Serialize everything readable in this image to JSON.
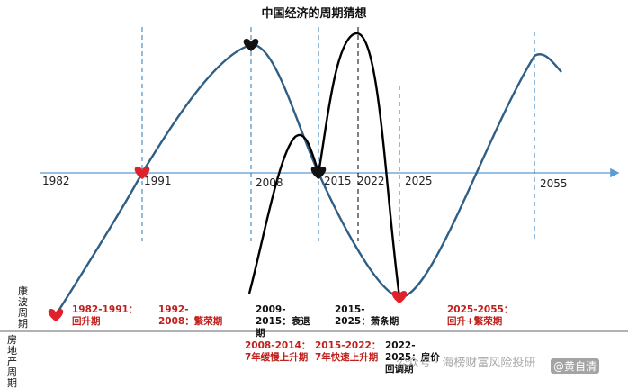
{
  "title": "中国经济的周期猜想",
  "years": [
    "1982",
    "1991",
    "2008",
    "2015",
    "2022",
    "2025",
    "2055"
  ],
  "row_labels": {
    "kondratiev": "康波周期",
    "real_estate": "房地产周期"
  },
  "phases_top": [
    {
      "text": "1982-1991：回升期",
      "color": "red"
    },
    {
      "text": "1992-2008：繁荣期",
      "color": "red"
    },
    {
      "text": "2009-2015：衰退期",
      "color": "black"
    },
    {
      "text": "2015-2025：萧条期",
      "color": "black"
    },
    {
      "text": "2025-2055：回升+繁荣期",
      "color": "red"
    }
  ],
  "phases_bottom": [
    {
      "text": "2008-2014：7年缓慢上升期",
      "color": "red"
    },
    {
      "text": "2015-2022：7年快速上升期",
      "color": "red"
    },
    {
      "text": "2022-2025：房价回调期",
      "color": "black"
    }
  ],
  "watermark": {
    "left": "公众号 · 海榜财富风险投研",
    "right": "@黄自清"
  },
  "colors": {
    "wave": "#2f5f86",
    "axis": "#5b9bd5",
    "dashed": "#2e75b6",
    "property_curve": "#000000",
    "heart_red": "#e0202a",
    "heart_black": "#111111"
  }
}
